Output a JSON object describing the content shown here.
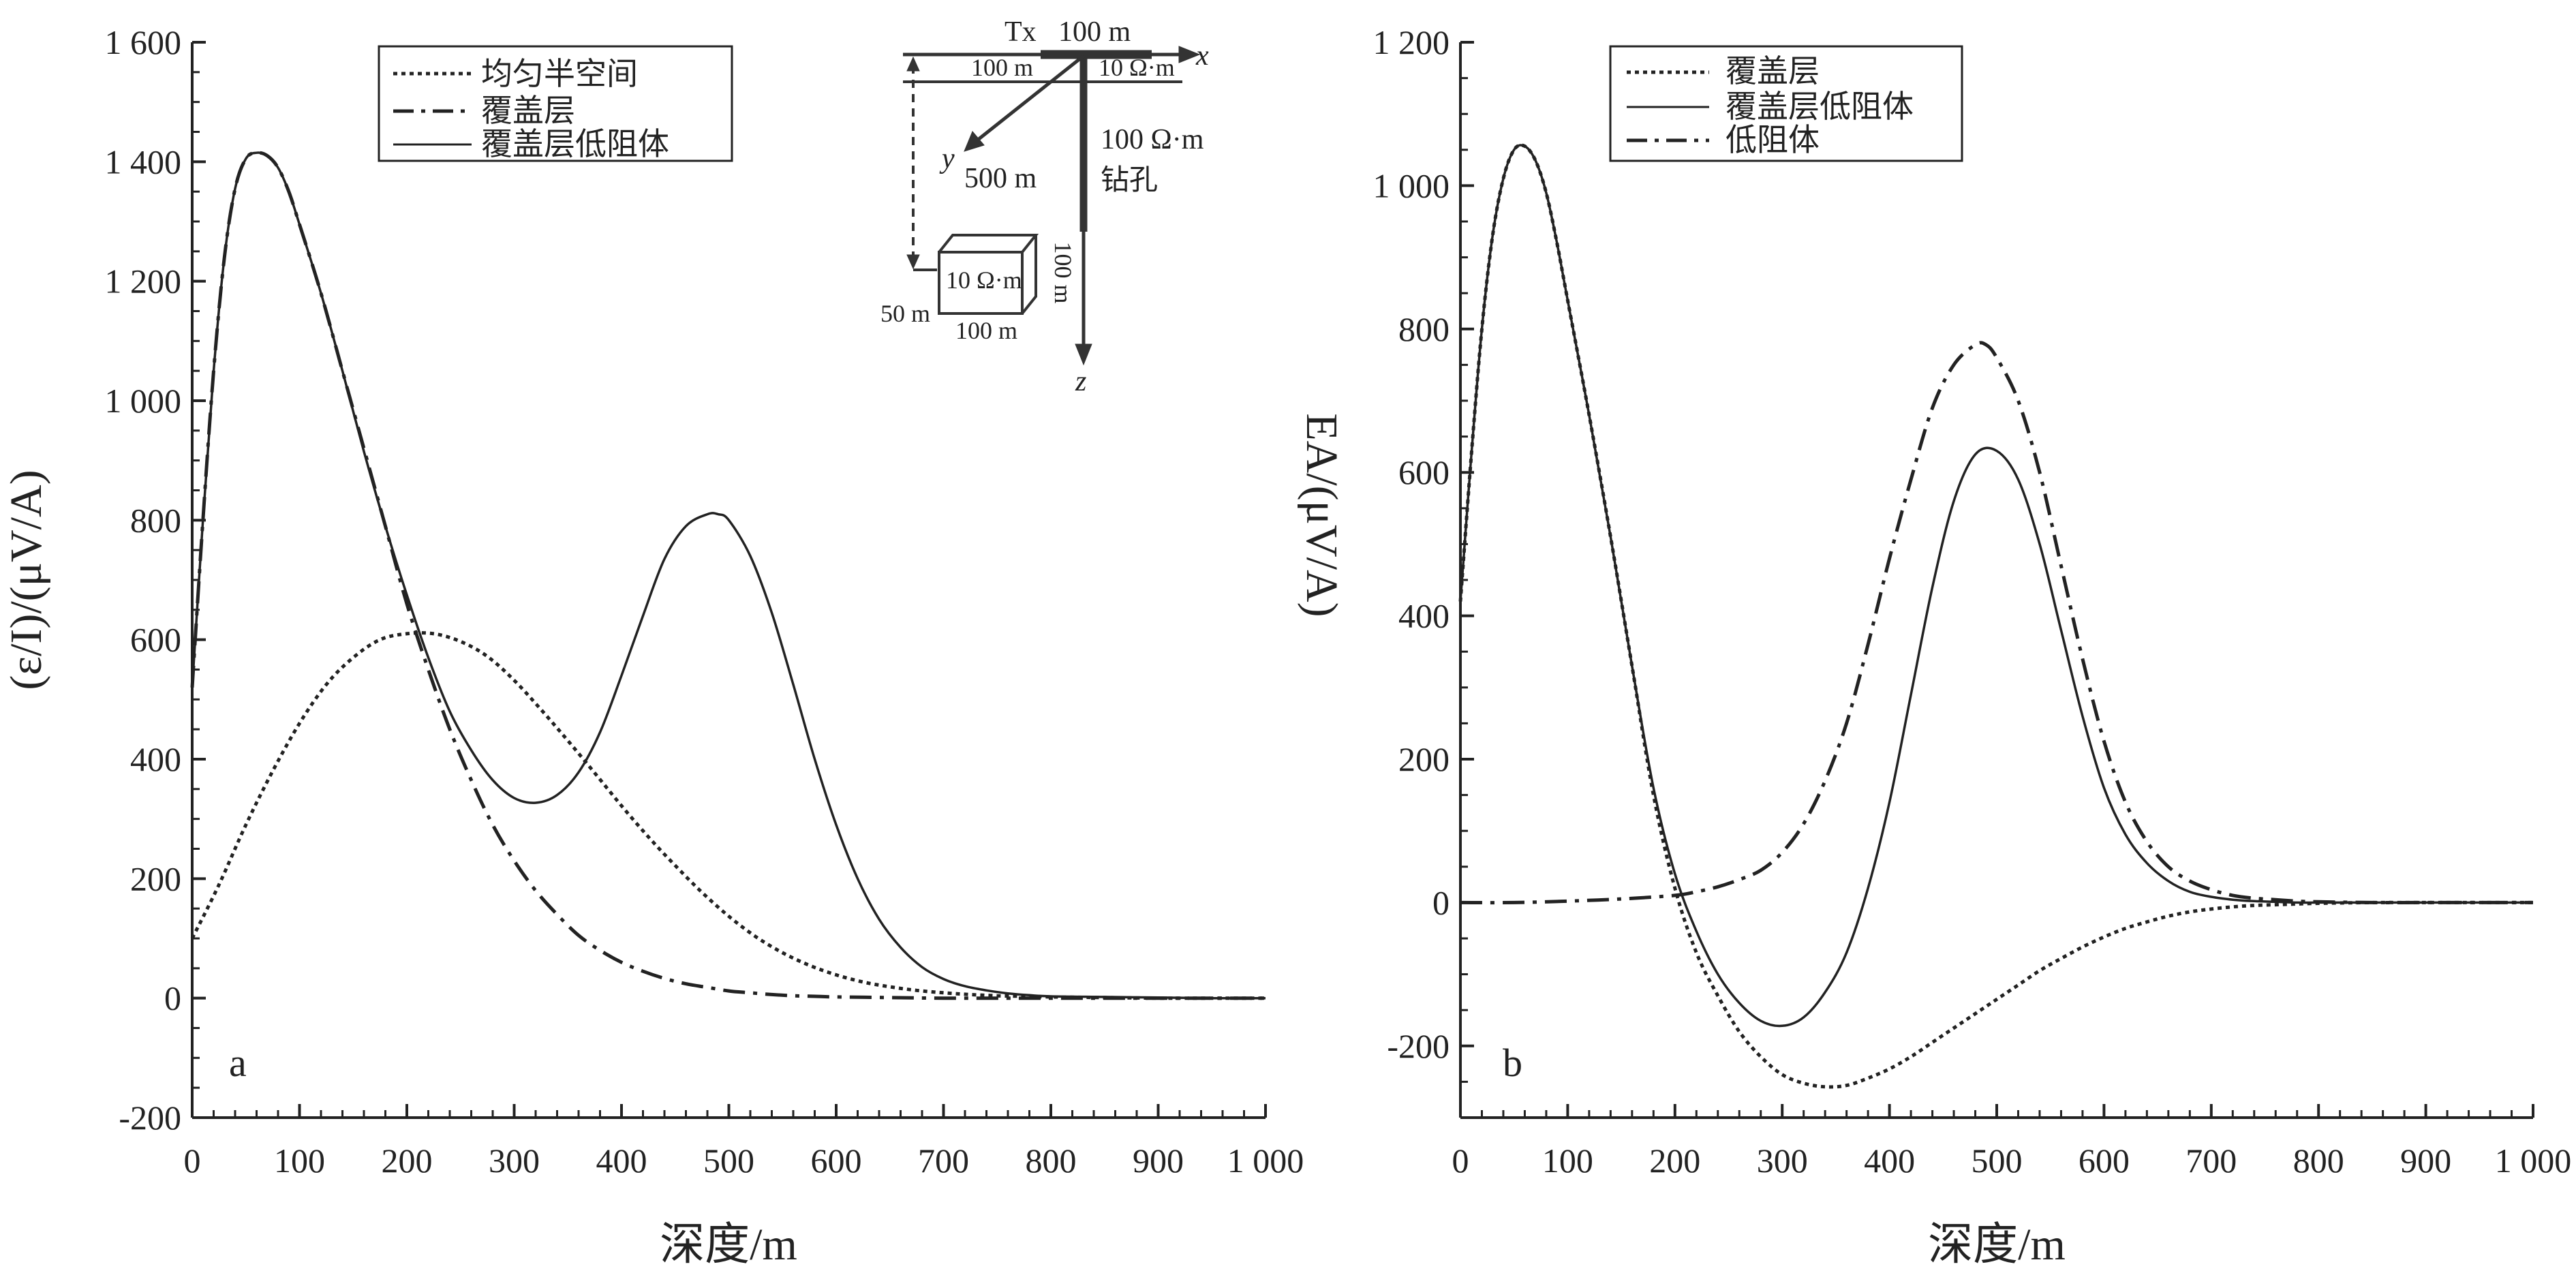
{
  "chart_data": [
    {
      "panel_label": "a",
      "type": "line",
      "xlabel": "深度/m",
      "ylabel": "(ε/I)/(μV/A)",
      "xlim": [
        0,
        1000
      ],
      "ylim": [
        -200,
        1600
      ],
      "x_ticks": [
        0,
        100,
        200,
        300,
        400,
        500,
        600,
        700,
        800,
        900,
        1000
      ],
      "x_tick_labels": [
        "0",
        "100",
        "200",
        "300",
        "400",
        "500",
        "600",
        "700",
        "800",
        "900",
        "1 000"
      ],
      "y_ticks": [
        -200,
        0,
        200,
        400,
        600,
        800,
        1000,
        1200,
        1400,
        1600
      ],
      "y_tick_labels": [
        "-200",
        "0",
        "200",
        "400",
        "600",
        "800",
        "1 000",
        "1 200",
        "1 400",
        "1 600"
      ],
      "grid": false,
      "legend_position": "top-center",
      "series": [
        {
          "name": "均匀半空间",
          "style": "dotted",
          "x": [
            0,
            25,
            50,
            75,
            100,
            125,
            150,
            175,
            200,
            225,
            250,
            275,
            300,
            325,
            350,
            375,
            400,
            425,
            450,
            475,
            500,
            525,
            550,
            575,
            600,
            625,
            650,
            675,
            700,
            725,
            750,
            775,
            800,
            850,
            900,
            950,
            1000
          ],
          "y": [
            100,
            190,
            290,
            380,
            460,
            525,
            570,
            600,
            610,
            610,
            597,
            572,
            532,
            483,
            431,
            377,
            322,
            270,
            222,
            177,
            137,
            103,
            76,
            55,
            39,
            27,
            19,
            13,
            9,
            6,
            4,
            3,
            2,
            1,
            0,
            0,
            0
          ]
        },
        {
          "name": "覆盖层",
          "style": "dash-dot",
          "x": [
            0,
            10,
            20,
            30,
            40,
            50,
            60,
            70,
            80,
            90,
            100,
            120,
            140,
            160,
            180,
            200,
            220,
            240,
            260,
            280,
            300,
            320,
            340,
            360,
            380,
            400,
            420,
            440,
            460,
            480,
            500,
            520,
            540,
            560,
            580,
            600,
            650,
            700,
            800,
            900,
            1000
          ],
          "y": [
            520,
            800,
            1050,
            1240,
            1355,
            1405,
            1415,
            1410,
            1390,
            1350,
            1295,
            1180,
            1050,
            920,
            790,
            660,
            550,
            450,
            365,
            290,
            230,
            180,
            140,
            105,
            80,
            60,
            45,
            33,
            24,
            18,
            12,
            9,
            6,
            4,
            3,
            2,
            1,
            0,
            0,
            0,
            0
          ]
        },
        {
          "name": "覆盖层低阻体",
          "style": "solid",
          "x": [
            0,
            10,
            20,
            30,
            40,
            50,
            60,
            70,
            80,
            90,
            100,
            120,
            140,
            160,
            180,
            200,
            220,
            240,
            260,
            280,
            300,
            320,
            340,
            360,
            380,
            400,
            420,
            440,
            460,
            480,
            490,
            500,
            520,
            540,
            560,
            580,
            600,
            620,
            640,
            660,
            680,
            700,
            720,
            740,
            760,
            780,
            800,
            850,
            900,
            950,
            1000
          ],
          "y": [
            520,
            800,
            1050,
            1240,
            1355,
            1405,
            1415,
            1410,
            1390,
            1350,
            1295,
            1180,
            1050,
            915,
            790,
            675,
            570,
            480,
            415,
            365,
            335,
            327,
            340,
            378,
            445,
            540,
            640,
            735,
            790,
            810,
            810,
            800,
            740,
            645,
            525,
            400,
            290,
            200,
            132,
            85,
            52,
            32,
            20,
            13,
            8,
            5,
            3,
            2,
            1,
            0,
            0
          ]
        }
      ]
    },
    {
      "panel_label": "b",
      "type": "line",
      "xlabel": "深度/m",
      "ylabel": "EA/(μV/A)",
      "xlim": [
        0,
        1000
      ],
      "ylim": [
        -300,
        1200
      ],
      "x_ticks": [
        0,
        100,
        200,
        300,
        400,
        500,
        600,
        700,
        800,
        900,
        1000
      ],
      "x_tick_labels": [
        "0",
        "100",
        "200",
        "300",
        "400",
        "500",
        "600",
        "700",
        "800",
        "900",
        "1 000"
      ],
      "y_ticks": [
        -200,
        0,
        200,
        400,
        600,
        800,
        1000,
        1200
      ],
      "y_tick_labels": [
        "-200",
        "0",
        "200",
        "400",
        "600",
        "800",
        "1 000",
        "1 200"
      ],
      "grid": false,
      "legend_position": "top-center",
      "series": [
        {
          "name": "覆盖层",
          "style": "dotted",
          "x": [
            0,
            10,
            20,
            30,
            40,
            50,
            60,
            70,
            80,
            90,
            100,
            120,
            140,
            160,
            180,
            200,
            220,
            240,
            260,
            280,
            300,
            320,
            340,
            360,
            380,
            400,
            420,
            440,
            460,
            480,
            500,
            520,
            540,
            560,
            580,
            600,
            620,
            640,
            660,
            680,
            700,
            720,
            740,
            760,
            780,
            800,
            850,
            900,
            950,
            1000
          ],
          "y": [
            420,
            620,
            800,
            930,
            1010,
            1050,
            1055,
            1035,
            990,
            920,
            840,
            680,
            510,
            330,
            150,
            20,
            -70,
            -130,
            -180,
            -215,
            -240,
            -252,
            -257,
            -255,
            -245,
            -232,
            -215,
            -195,
            -175,
            -155,
            -135,
            -115,
            -95,
            -78,
            -62,
            -48,
            -36,
            -27,
            -19,
            -13,
            -9,
            -6,
            -4,
            -3,
            -2,
            -1,
            0,
            0,
            0,
            0
          ]
        },
        {
          "name": "覆盖层低阻体",
          "style": "solid",
          "x": [
            0,
            10,
            20,
            30,
            40,
            50,
            60,
            70,
            80,
            90,
            100,
            120,
            140,
            160,
            180,
            200,
            220,
            240,
            260,
            280,
            300,
            320,
            340,
            360,
            380,
            400,
            420,
            440,
            460,
            480,
            500,
            520,
            540,
            560,
            580,
            600,
            620,
            640,
            660,
            680,
            700,
            720,
            740,
            760,
            780,
            800,
            850,
            900,
            950,
            1000
          ],
          "y": [
            420,
            620,
            800,
            930,
            1010,
            1050,
            1055,
            1035,
            990,
            920,
            840,
            680,
            510,
            330,
            160,
            40,
            -40,
            -100,
            -140,
            -165,
            -172,
            -160,
            -125,
            -70,
            20,
            140,
            290,
            440,
            560,
            625,
            630,
            590,
            500,
            380,
            260,
            160,
            95,
            55,
            30,
            15,
            8,
            4,
            2,
            1,
            0,
            0,
            0,
            0,
            0,
            0
          ]
        },
        {
          "name": "低阻体",
          "style": "dash-dot",
          "x": [
            0,
            50,
            100,
            150,
            200,
            220,
            240,
            260,
            280,
            300,
            320,
            340,
            360,
            380,
            400,
            420,
            440,
            460,
            480,
            490,
            500,
            520,
            540,
            560,
            580,
            600,
            620,
            640,
            660,
            680,
            700,
            720,
            740,
            760,
            780,
            800,
            850,
            900,
            950,
            1000
          ],
          "y": [
            0,
            0,
            2,
            5,
            10,
            15,
            22,
            32,
            45,
            70,
            110,
            170,
            250,
            360,
            480,
            590,
            690,
            750,
            778,
            778,
            760,
            700,
            600,
            470,
            340,
            225,
            140,
            85,
            50,
            30,
            18,
            10,
            6,
            4,
            2,
            1,
            0,
            0,
            0,
            0
          ]
        }
      ]
    }
  ],
  "inset": {
    "tx_label": "Tx",
    "tx_length": "100 m",
    "x_axis": "x",
    "y_axis": "y",
    "z_axis": "z",
    "offset_label": "100 m",
    "overburden_rho": "10 Ω·m",
    "y_distance": "500 m",
    "host_rho": "100 Ω·m",
    "borehole": "钻孔",
    "body_rho": "10 Ω·m",
    "body_height": "100 m",
    "body_width": "100 m",
    "body_depth": "50 m"
  }
}
